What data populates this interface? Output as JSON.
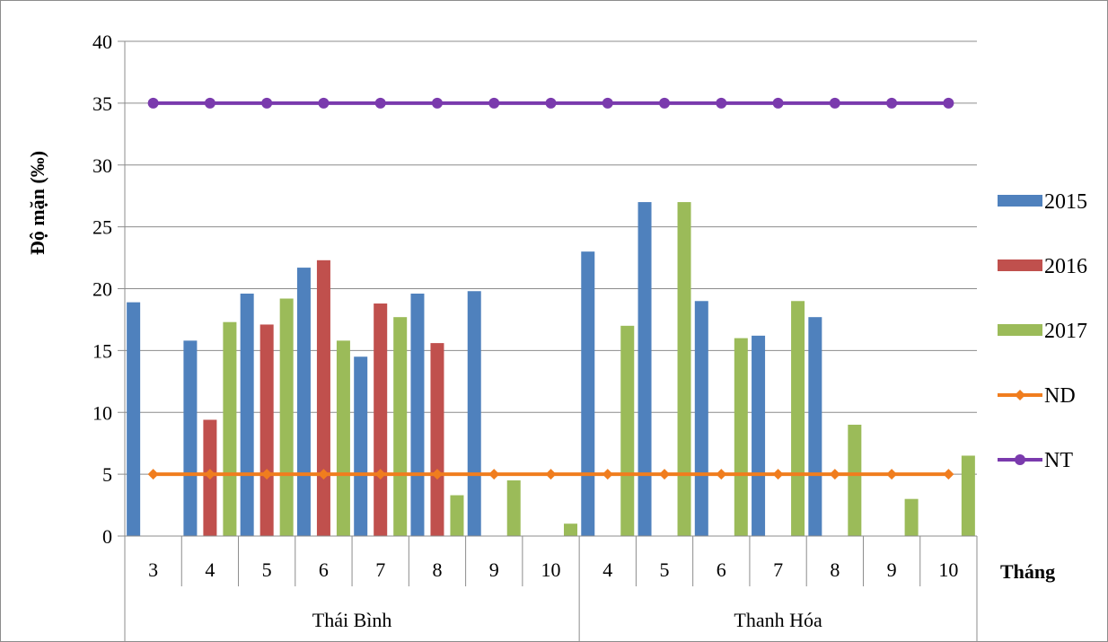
{
  "chart_data": {
    "type": "bar",
    "ylabel": "Độ mặn (‰)",
    "xlabel": "Tháng",
    "ylim": [
      0,
      40
    ],
    "yticks": [
      0,
      5,
      10,
      15,
      20,
      25,
      30,
      35,
      40
    ],
    "grid": true,
    "legend_position": "right",
    "groups": [
      {
        "name": "Thái Bình",
        "months": [
          "3",
          "4",
          "5",
          "6",
          "7",
          "8",
          "9",
          "10"
        ]
      },
      {
        "name": "Thanh Hóa",
        "months": [
          "4",
          "5",
          "6",
          "7",
          "8",
          "9",
          "10"
        ]
      }
    ],
    "categories": [
      "3",
      "4",
      "5",
      "6",
      "7",
      "8",
      "9",
      "10",
      "4",
      "5",
      "6",
      "7",
      "8",
      "9",
      "10"
    ],
    "series": [
      {
        "name": "2015",
        "kind": "bar",
        "color": "#4f81bd",
        "values": [
          18.9,
          15.8,
          19.6,
          21.7,
          14.5,
          19.6,
          19.8,
          null,
          23.0,
          27.0,
          19.0,
          16.2,
          17.7,
          null,
          null
        ]
      },
      {
        "name": "2016",
        "kind": "bar",
        "color": "#c0504d",
        "values": [
          null,
          9.4,
          17.1,
          22.3,
          18.8,
          15.6,
          null,
          null,
          null,
          null,
          null,
          null,
          null,
          null,
          null
        ]
      },
      {
        "name": "2017",
        "kind": "bar",
        "color": "#9bbb59",
        "values": [
          null,
          17.3,
          19.2,
          15.8,
          17.7,
          3.3,
          4.5,
          1.0,
          17.0,
          27.0,
          16.0,
          19.0,
          9.0,
          3.0,
          6.5
        ]
      },
      {
        "name": "ND",
        "kind": "line",
        "color": "#f07d1e",
        "values": [
          5,
          5,
          5,
          5,
          5,
          5,
          5,
          5,
          5,
          5,
          5,
          5,
          5,
          5,
          5
        ]
      },
      {
        "name": "NT",
        "kind": "line",
        "color": "#7a3aad",
        "values": [
          35,
          35,
          35,
          35,
          35,
          35,
          35,
          35,
          35,
          35,
          35,
          35,
          35,
          35,
          35
        ]
      }
    ]
  }
}
